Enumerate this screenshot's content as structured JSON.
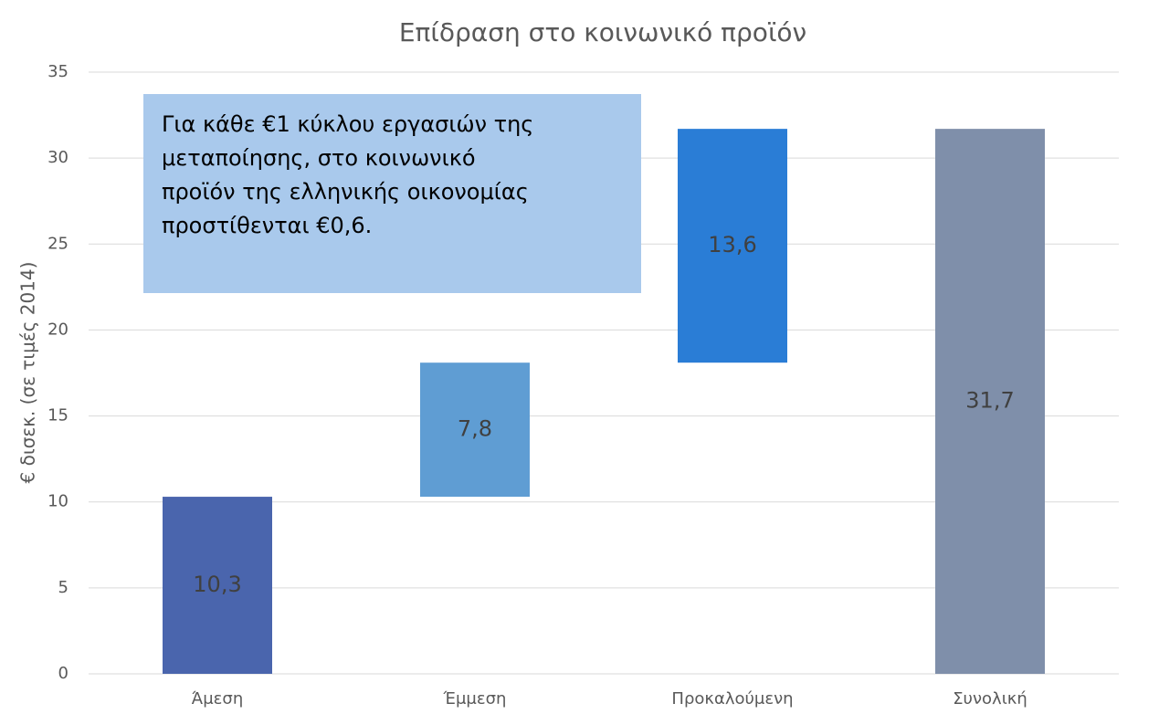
{
  "chart_data": {
    "type": "waterfall",
    "title": "Επίδραση στο κοινωνικό προϊόν",
    "y_label": "€ δισεκ. (σε τιμές 2014)",
    "categories": [
      "Άμεση",
      "Έμμεση",
      "Προκαλούμενη",
      "Συνολική"
    ],
    "values": [
      10.3,
      7.8,
      13.6,
      31.7
    ],
    "value_labels": [
      "10,3",
      "7,8",
      "13,6",
      "31,7"
    ],
    "is_total": [
      false,
      false,
      false,
      true
    ],
    "colors": [
      "#4a65ad",
      "#5f9dd3",
      "#2a7dd6",
      "#7f8faa"
    ],
    "ylim": [
      0,
      35
    ],
    "yticks": [
      0,
      5,
      10,
      15,
      20,
      25,
      30,
      35
    ],
    "grid": true,
    "annotation": [
      "Για κάθε €1 κύκλου εργασιών της",
      "μεταποίησης, στο κοινωνικό",
      "προϊόν της ελληνικής οικονομίας",
      "προστίθενται €0,6."
    ]
  }
}
